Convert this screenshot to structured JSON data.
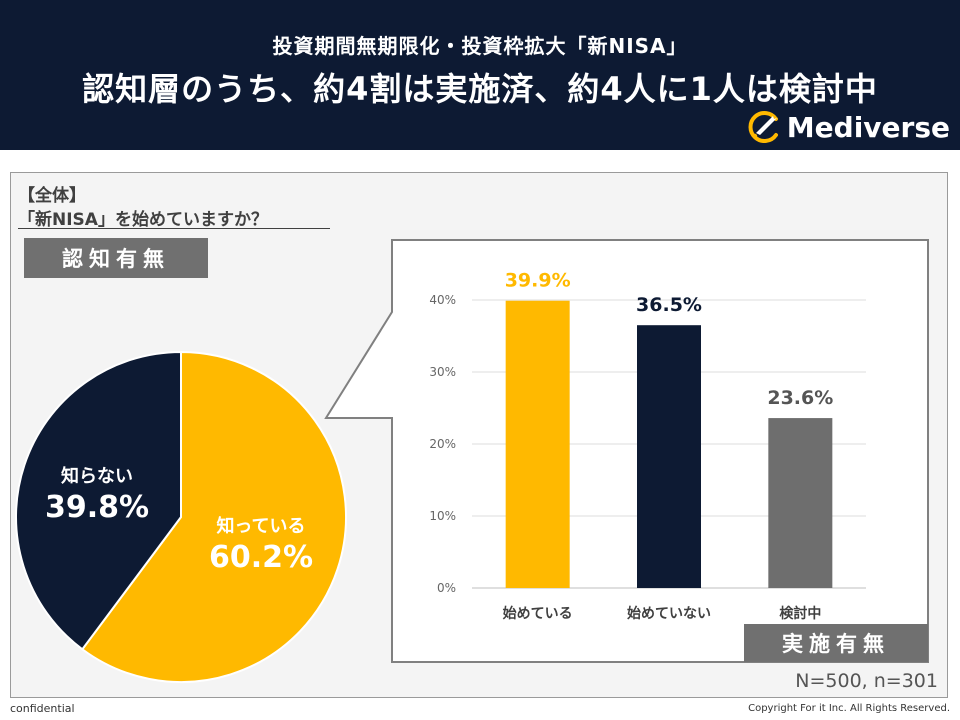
{
  "header": {
    "subtitle": "投資期間無期限化・投資枠拡大「新NISA」",
    "title": "認知層のうち、約4割は実施済、約4人に1人は検討中",
    "brand": "Mediverse"
  },
  "panel": {
    "segment_label": "【全体】",
    "question": "「新NISA」を始めていますか？",
    "awareness_tag": "認知有無",
    "implementation_tag": "実施有無",
    "sample_size": "N=500, n=301"
  },
  "colors": {
    "header_bg": "#0d1a33",
    "gold": "#ffb900",
    "navy": "#0d1a33",
    "gray": "#6e6e6e",
    "tag_gray": "#707070"
  },
  "chart_data": [
    {
      "type": "pie",
      "title": "認知有無",
      "slices": [
        {
          "label": "知っている",
          "value": 60.2,
          "display": "60.2%",
          "color": "#ffb900"
        },
        {
          "label": "知らない",
          "value": 39.8,
          "display": "39.8%",
          "color": "#0d1a33"
        }
      ]
    },
    {
      "type": "bar",
      "title": "実施有無",
      "categories": [
        "始めている",
        "始めていない",
        "検討中"
      ],
      "values": [
        39.9,
        36.5,
        23.6
      ],
      "value_labels": [
        "39.9%",
        "36.5%",
        "23.6%"
      ],
      "colors": [
        "#ffb900",
        "#0d1a33",
        "#6e6e6e"
      ],
      "label_colors": [
        "#ffb900",
        "#0d1a33",
        "#555555"
      ],
      "ylim": [
        0,
        40
      ],
      "yticks": [
        "0%",
        "10%",
        "20%",
        "30%",
        "40%"
      ],
      "grid": true
    }
  ],
  "footer": {
    "left": "confidential",
    "right": "Copyright For it Inc. All Rights Reserved."
  }
}
